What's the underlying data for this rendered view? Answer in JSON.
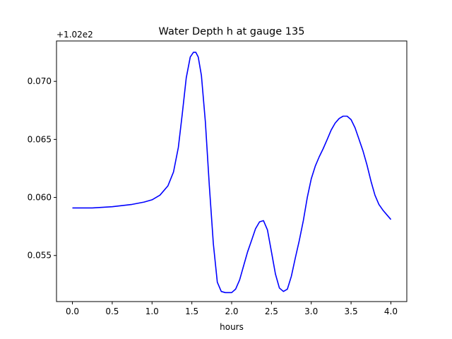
{
  "chart_data": {
    "type": "line",
    "title": "Water Depth h at gauge 135",
    "xlabel": "hours",
    "ylabel": "",
    "offset_label": "+1.02e2",
    "xlim": [
      -0.2,
      4.2
    ],
    "ylim": [
      0.05103,
      0.07348
    ],
    "xticks": [
      0.0,
      0.5,
      1.0,
      1.5,
      2.0,
      2.5,
      3.0,
      3.5,
      4.0
    ],
    "xtick_labels": [
      "0.0",
      "0.5",
      "1.0",
      "1.5",
      "2.0",
      "2.5",
      "3.0",
      "3.5",
      "4.0"
    ],
    "yticks": [
      0.055,
      0.06,
      0.065,
      0.07
    ],
    "ytick_labels": [
      "0.055",
      "0.060",
      "0.065",
      "0.070"
    ],
    "grid": false,
    "series": [
      {
        "color": "#0000ff",
        "x": [
          0.0,
          0.25,
          0.5,
          0.75,
          0.9,
          1.0,
          1.1,
          1.2,
          1.27,
          1.33,
          1.38,
          1.43,
          1.48,
          1.52,
          1.55,
          1.58,
          1.62,
          1.67,
          1.72,
          1.77,
          1.82,
          1.87,
          1.92,
          1.96,
          2.0,
          2.05,
          2.1,
          2.15,
          2.2,
          2.25,
          2.3,
          2.35,
          2.4,
          2.45,
          2.5,
          2.55,
          2.6,
          2.65,
          2.7,
          2.75,
          2.8,
          2.85,
          2.9,
          2.95,
          3.0,
          3.05,
          3.1,
          3.15,
          3.2,
          3.25,
          3.3,
          3.35,
          3.4,
          3.45,
          3.5,
          3.55,
          3.6,
          3.65,
          3.7,
          3.75,
          3.8,
          3.85,
          3.9,
          3.95,
          4.0
        ],
        "y": [
          0.0591,
          0.0591,
          0.0592,
          0.0594,
          0.0596,
          0.0598,
          0.0602,
          0.061,
          0.0622,
          0.0643,
          0.0672,
          0.0703,
          0.0721,
          0.0725,
          0.0725,
          0.0721,
          0.0705,
          0.0665,
          0.061,
          0.056,
          0.0527,
          0.0519,
          0.0518,
          0.0518,
          0.0518,
          0.0521,
          0.0529,
          0.0541,
          0.0553,
          0.0563,
          0.0573,
          0.0579,
          0.058,
          0.0572,
          0.0553,
          0.0534,
          0.0522,
          0.0519,
          0.0521,
          0.0532,
          0.0548,
          0.0563,
          0.058,
          0.06,
          0.0616,
          0.0627,
          0.0635,
          0.0642,
          0.065,
          0.0658,
          0.0664,
          0.0668,
          0.067,
          0.067,
          0.0667,
          0.066,
          0.065,
          0.064,
          0.0628,
          0.0614,
          0.0602,
          0.0594,
          0.0589,
          0.0585,
          0.0581
        ]
      }
    ]
  }
}
